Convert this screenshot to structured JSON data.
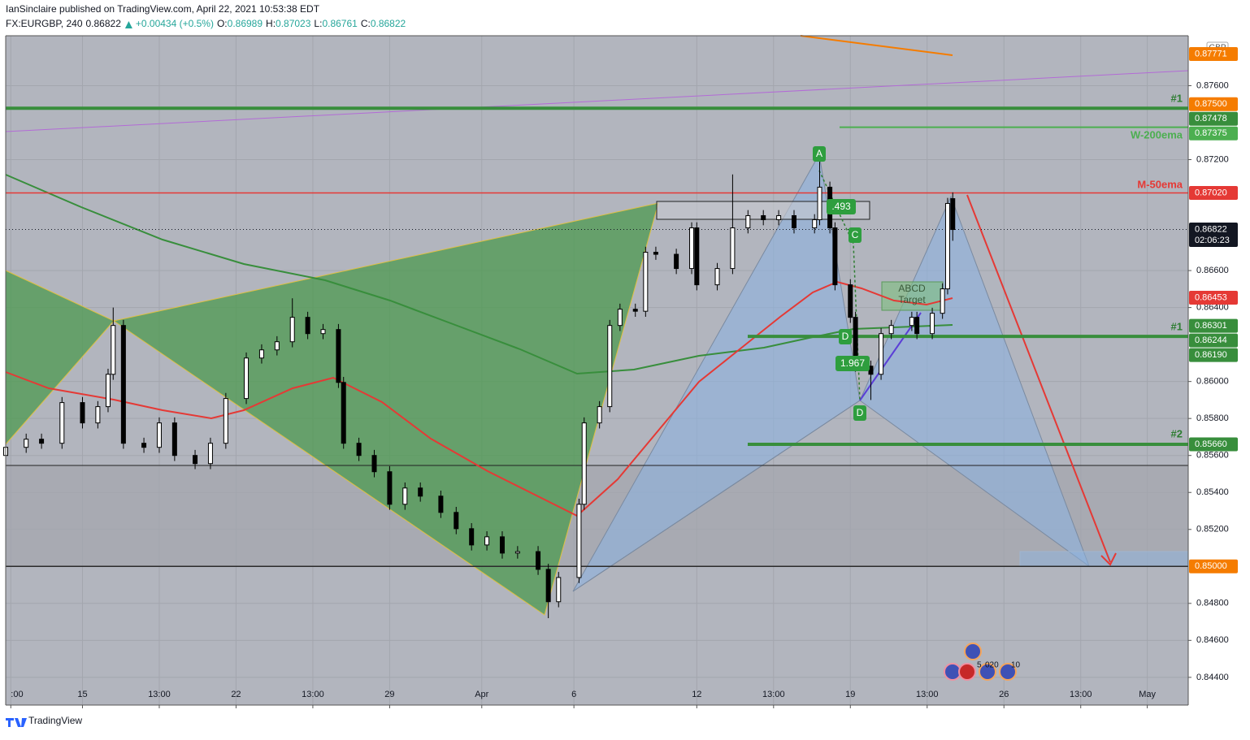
{
  "header": {
    "publisher": "IanSinclaire published on TradingView.com, April 22, 2021 10:53:38 EDT",
    "symbol": "FX:EURGBP, 240",
    "change": "+0.00434 (+0.5%)",
    "ohlc_labels": [
      "O:",
      "H:",
      "L:",
      "C:"
    ]
  },
  "chart_data": {
    "type": "candlestick",
    "x": [
      0,
      4,
      7,
      11,
      15,
      18,
      20,
      21,
      23,
      27,
      30,
      33,
      37,
      40,
      43,
      47,
      50,
      53,
      56,
      59,
      62,
      65,
      66,
      69,
      72,
      75,
      78,
      81,
      85,
      88,
      91,
      94,
      97,
      100,
      104,
      106,
      108,
      112,
      113,
      116,
      118,
      120,
      123,
      125,
      127,
      131,
      134,
      135,
      139,
      142,
      145,
      148,
      151,
      154,
      158,
      159,
      161,
      162,
      165,
      166,
      169,
      171,
      173,
      177,
      178,
      181,
      183,
      184,
      185
    ],
    "open": [
      0.856,
      0.85644,
      0.85688,
      0.85666,
      0.85886,
      0.85776,
      0.85864,
      0.86039,
      0.86303,
      0.85666,
      0.85644,
      0.85776,
      0.856,
      0.85556,
      0.85666,
      0.85908,
      0.86127,
      0.86171,
      0.86215,
      0.86347,
      0.86259,
      0.86281,
      0.85995,
      0.85666,
      0.856,
      0.85512,
      0.85336,
      0.85424,
      0.8538,
      0.85292,
      0.85204,
      0.85116,
      0.8516,
      0.85072,
      0.8508,
      0.84984,
      0.84809,
      0.8494,
      0.85336,
      0.85776,
      0.85864,
      0.86303,
      0.86391,
      0.8638,
      0.86699,
      0.86688,
      0.86611,
      0.86831,
      0.86523,
      0.86611,
      0.86831,
      0.86897,
      0.86875,
      0.86897,
      0.86831,
      0.86875,
      0.87051,
      0.86831,
      0.86523,
      0.86347,
      0.86083,
      0.86039,
      0.86259,
      0.86303,
      0.86347,
      0.86259,
      0.86369,
      0.86501,
      0.86989
    ],
    "high": [
      0.85674,
      0.85718,
      0.85718,
      0.85916,
      0.85916,
      0.85894,
      0.86069,
      0.864,
      0.86333,
      0.85696,
      0.85806,
      0.85806,
      0.8563,
      0.85696,
      0.85938,
      0.86157,
      0.86201,
      0.86245,
      0.8645,
      0.86377,
      0.86311,
      0.86311,
      0.86025,
      0.85696,
      0.8563,
      0.85542,
      0.85454,
      0.85454,
      0.8541,
      0.85322,
      0.85234,
      0.8519,
      0.8519,
      0.8511,
      0.8511,
      0.85014,
      0.8497,
      0.85366,
      0.85806,
      0.85894,
      0.86333,
      0.86421,
      0.86421,
      0.86729,
      0.86729,
      0.86718,
      0.86861,
      0.86861,
      0.86641,
      0.8712,
      0.86927,
      0.86927,
      0.86927,
      0.86927,
      0.86905,
      0.872,
      0.87081,
      0.86861,
      0.86553,
      0.86377,
      0.86113,
      0.86289,
      0.86333,
      0.86377,
      0.86377,
      0.86399,
      0.86531,
      0.86993,
      0.87023
    ],
    "low": [
      0.8557,
      0.85614,
      0.85636,
      0.85636,
      0.85746,
      0.85746,
      0.85834,
      0.86009,
      0.85636,
      0.85614,
      0.85614,
      0.8557,
      0.85526,
      0.85526,
      0.85636,
      0.85878,
      0.86097,
      0.86141,
      0.86185,
      0.86229,
      0.86229,
      0.85965,
      0.85636,
      0.8557,
      0.85482,
      0.85306,
      0.85306,
      0.8535,
      0.85262,
      0.85174,
      0.85086,
      0.85086,
      0.85042,
      0.85042,
      0.84954,
      0.8472,
      0.84779,
      0.8491,
      0.85306,
      0.85746,
      0.85834,
      0.86273,
      0.8635,
      0.8635,
      0.86658,
      0.86581,
      0.86581,
      0.86493,
      0.86493,
      0.86581,
      0.86801,
      0.86845,
      0.86845,
      0.86801,
      0.86801,
      0.86845,
      0.86801,
      0.86493,
      0.86317,
      0.86053,
      0.859,
      0.86009,
      0.86229,
      0.86273,
      0.86229,
      0.86229,
      0.86339,
      0.86471,
      0.86761
    ],
    "close": [
      0.85644,
      0.85688,
      0.85666,
      0.85886,
      0.85776,
      0.85864,
      0.86039,
      0.86303,
      0.85666,
      0.85644,
      0.85776,
      0.856,
      0.85556,
      0.85666,
      0.85908,
      0.86127,
      0.86171,
      0.86215,
      0.86347,
      0.86259,
      0.86281,
      0.85995,
      0.85666,
      0.856,
      0.85512,
      0.85336,
      0.85424,
      0.8538,
      0.85292,
      0.85204,
      0.85116,
      0.8516,
      0.85072,
      0.8508,
      0.84984,
      0.84809,
      0.8494,
      0.85336,
      0.85776,
      0.85864,
      0.86303,
      0.86391,
      0.8638,
      0.86699,
      0.86688,
      0.86611,
      0.86831,
      0.86523,
      0.86611,
      0.86831,
      0.86897,
      0.86875,
      0.86897,
      0.86831,
      0.86875,
      0.87051,
      0.86831,
      0.86523,
      0.86347,
      0.86083,
      0.86039,
      0.86259,
      0.86303,
      0.86347,
      0.86259,
      0.86369,
      0.86501,
      0.86963,
      0.86822
    ],
    "up_color": "#ffffff",
    "down_color": "#000000",
    "xlim": [
      0,
      231
    ],
    "ylim": [
      0.8425,
      0.8787
    ],
    "xticks": [
      {
        "value": 1,
        "label": ":00"
      },
      {
        "value": 15,
        "label": "15"
      },
      {
        "value": 30,
        "label": "13:00"
      },
      {
        "value": 45,
        "label": "22"
      },
      {
        "value": 60,
        "label": "13:00"
      },
      {
        "value": 75,
        "label": "29"
      },
      {
        "value": 93,
        "label": "Apr"
      },
      {
        "value": 111,
        "label": "6"
      },
      {
        "value": 135,
        "label": "12"
      },
      {
        "value": 150,
        "label": "13:00"
      },
      {
        "value": 165,
        "label": "19"
      },
      {
        "value": 180,
        "label": "13:00"
      },
      {
        "value": 195,
        "label": "26"
      },
      {
        "value": 210,
        "label": "13:00"
      },
      {
        "value": 223,
        "label": "May"
      }
    ],
    "yticks": [
      {
        "value": 0.876,
        "label": "0.87600"
      },
      {
        "value": 0.872,
        "label": "0.87200"
      },
      {
        "value": 0.866,
        "label": "0.86600"
      },
      {
        "value": 0.864,
        "label": "0.86400"
      },
      {
        "value": 0.86,
        "label": "0.86000"
      },
      {
        "value": 0.858,
        "label": "0.85800"
      },
      {
        "value": 0.856,
        "label": "0.85600"
      },
      {
        "value": 0.854,
        "label": "0.85400"
      },
      {
        "value": 0.852,
        "label": "0.85200"
      },
      {
        "value": 0.848,
        "label": "0.84800"
      },
      {
        "value": 0.846,
        "label": "0.84600"
      },
      {
        "value": 0.844,
        "label": "0.84400"
      }
    ],
    "grid": true,
    "price_tags": [
      {
        "value": 0.87771,
        "color": "#f57c00"
      },
      {
        "value": 0.875,
        "label": "0.87500",
        "color": "#f57c00"
      },
      {
        "value": 0.87478,
        "color": "#388e3c"
      },
      {
        "value": 0.87375,
        "color": "#4caf50"
      },
      {
        "value": 0.8702,
        "label": "0.87020",
        "color": "#e53935"
      },
      {
        "value": 0.86453,
        "color": "#e53935"
      },
      {
        "value": 0.86301,
        "color": "#388e3c"
      },
      {
        "value": 0.86244,
        "color": "#388e3c"
      },
      {
        "value": 0.8619,
        "label": "0.86190",
        "color": "#388e3c"
      },
      {
        "value": 0.8566,
        "label": "0.85660",
        "color": "#388e3c"
      },
      {
        "value": 0.85,
        "label": "0.85000",
        "color": "#f57c00"
      }
    ],
    "last_price_color": "#131722",
    "countdown": "02:06:23",
    "currency": "GBP",
    "annotations": {
      "level_1_top": "#1",
      "w200": "W-200ema",
      "m50": "M-50ema",
      "level_1": "#1",
      "level_2": "#2",
      "point_a": "A",
      "point_c": "C",
      "point_d_inner": "D",
      "point_d": "D",
      "ratio_bc": ".493",
      "ratio_cd": "1.967",
      "abcd_target": [
        "ABCD",
        "Target"
      ]
    },
    "event_labels": [
      "5",
      "020",
      "10"
    ]
  },
  "footer": {
    "brand": "TradingView"
  }
}
